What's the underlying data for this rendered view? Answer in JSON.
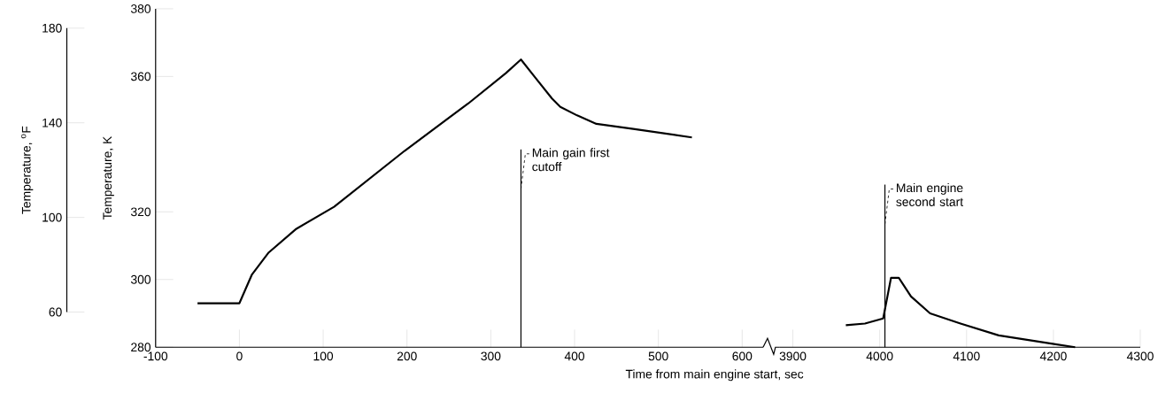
{
  "chart_data": [
    {
      "type": "line",
      "xlabel": "Time from main engine start, sec",
      "ylabel": "Temperature, K",
      "y2label": "Temperature, $^{o}$F",
      "x": [
        -50,
        0,
        15,
        35,
        68,
        113,
        197,
        273,
        318,
        336,
        352,
        373,
        383,
        403,
        426,
        470,
        540
      ],
      "series": [
        {
          "color": "#000000",
          "values": [
            293,
            293,
            301.5,
            308,
            315,
            321.5,
            338,
            352,
            361,
            365,
            360,
            353.5,
            351,
            348.5,
            346,
            344.5,
            342
          ]
        }
      ],
      "xlim": [
        -100,
        625
      ],
      "xticks": [
        -100,
        0,
        100,
        200,
        300,
        400,
        500,
        600
      ],
      "ylim": [
        280,
        380
      ],
      "yticks": [
        280,
        300,
        320,
        360,
        380
      ],
      "y2lim": [
        60,
        180
      ],
      "y2ticks": [
        60,
        100,
        140,
        180
      ],
      "ref_lines": [
        {
          "axis": "x",
          "value": 336,
          "label": "Main gain first cutoff"
        }
      ]
    },
    {
      "type": "line",
      "tick_labels": "x",
      "x": [
        3961,
        3983,
        4004,
        4013,
        4022,
        4036,
        4058,
        4093,
        4137,
        4199,
        4225
      ],
      "series": [
        {
          "color": "#000000",
          "values": [
            286.5,
            287,
            288.5,
            300.5,
            300.5,
            295,
            290,
            287,
            283.5,
            281,
            280
          ]
        }
      ],
      "xlim": [
        3885,
        4300
      ],
      "xticks": [
        3900,
        4000,
        4100,
        4200,
        4300
      ],
      "ylim": [
        280,
        380
      ],
      "ref_lines": [
        {
          "axis": "x",
          "value": 4006,
          "label": "Main engine second start"
        }
      ]
    }
  ]
}
